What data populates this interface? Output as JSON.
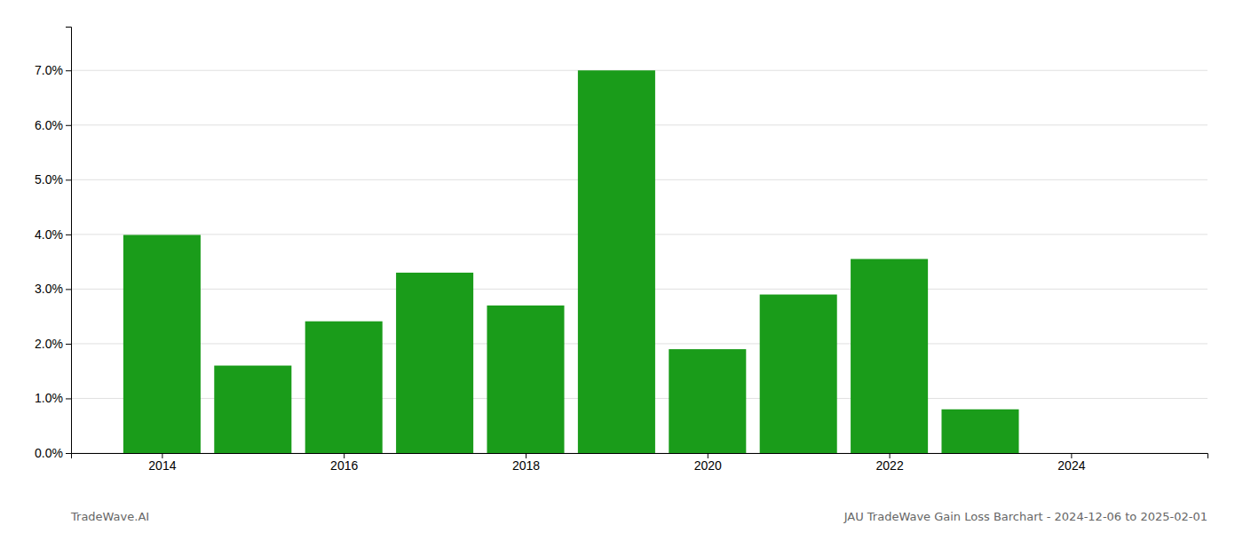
{
  "chart_data": {
    "type": "bar",
    "x": [
      2014,
      2015,
      2016,
      2017,
      2018,
      2019,
      2020,
      2021,
      2022,
      2023,
      2024
    ],
    "values": [
      0.0399,
      0.016,
      0.0241,
      0.033,
      0.027,
      0.07,
      0.019,
      0.029,
      0.0355,
      0.008,
      0.0
    ],
    "color": "#1a9c1a",
    "xlim": [
      2013.0,
      2025.5
    ],
    "xticks": [
      2014,
      2016,
      2018,
      2020,
      2022,
      2024
    ],
    "ylim": [
      0,
      0.078
    ],
    "yticks": [
      {
        "value": 0.0,
        "label": "0.0%"
      },
      {
        "value": 0.01,
        "label": "1.0%"
      },
      {
        "value": 0.02,
        "label": "2.0%"
      },
      {
        "value": 0.03,
        "label": "3.0%"
      },
      {
        "value": 0.04,
        "label": "4.0%"
      },
      {
        "value": 0.05,
        "label": "5.0%"
      },
      {
        "value": 0.06,
        "label": "6.0%"
      },
      {
        "value": 0.07,
        "label": "7.0%"
      }
    ],
    "grid": true,
    "annotations": [
      "TradeWave.AI",
      "JAU TradeWave Gain Loss Barchart - 2024-12-06 to 2025-02-01"
    ]
  }
}
